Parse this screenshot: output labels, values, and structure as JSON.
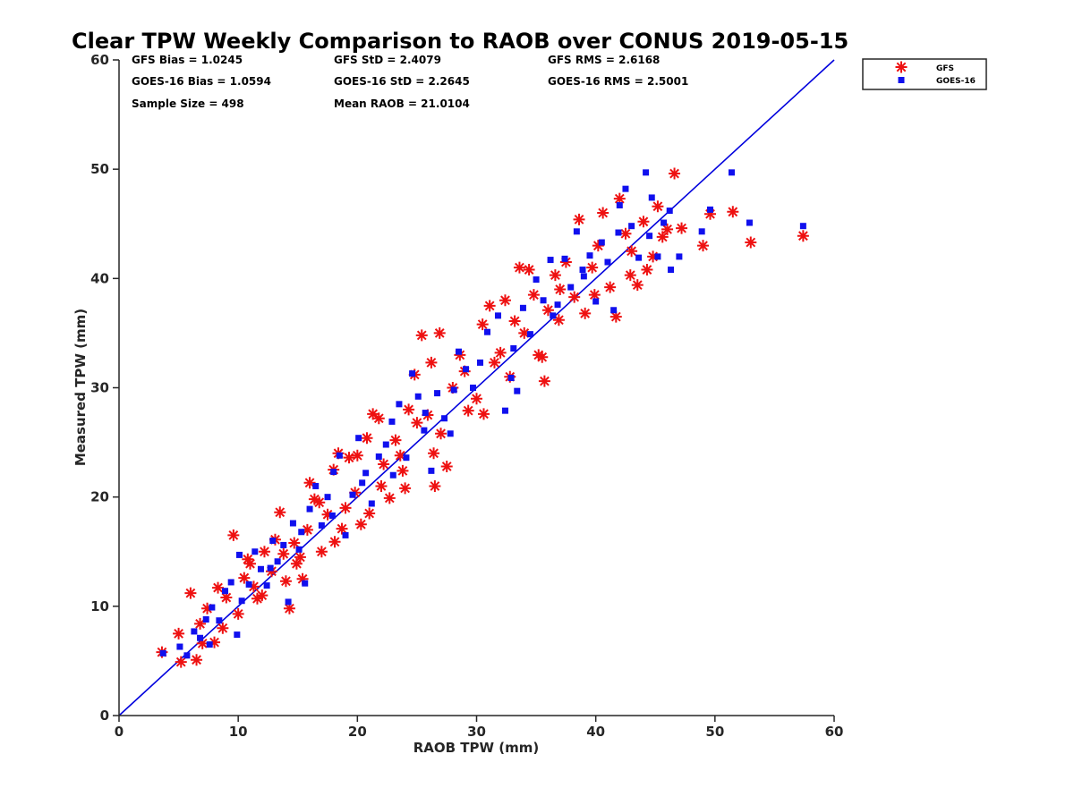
{
  "chart_data": {
    "type": "scatter",
    "title": "Clear TPW Weekly Comparison to RAOB over CONUS 2019-05-15",
    "xlabel": "RAOB TPW (mm)",
    "ylabel": "Measured TPW (mm)",
    "xlim": [
      0,
      60
    ],
    "ylim": [
      0,
      60
    ],
    "xticks": [
      0,
      10,
      20,
      30,
      40,
      50,
      60
    ],
    "yticks": [
      0,
      10,
      20,
      30,
      40,
      50,
      60
    ],
    "grid": false,
    "legend_position": "top-right outside",
    "reference_line": {
      "name": "1:1 line",
      "x": [
        0,
        60
      ],
      "y": [
        0,
        60
      ],
      "color": "#0000dd"
    },
    "stats": [
      [
        "GFS Bias = 1.0245",
        "GFS StD = 2.4079",
        "GFS RMS = 2.6168"
      ],
      [
        "GOES-16 Bias = 1.0594",
        "GOES-16 StD = 2.2645",
        "GOES-16 RMS = 2.5001"
      ],
      [
        "Sample Size = 498",
        "Mean RAOB = 21.0104"
      ]
    ],
    "series": [
      {
        "name": "GFS",
        "marker": "asterisk",
        "color": "#ee1111",
        "points": [
          [
            3.6,
            5.8
          ],
          [
            5.2,
            4.9
          ],
          [
            6.0,
            11.2
          ],
          [
            6.5,
            5.1
          ],
          [
            5.0,
            7.5
          ],
          [
            6.8,
            8.4
          ],
          [
            7.4,
            9.8
          ],
          [
            8.0,
            6.7
          ],
          [
            8.7,
            8.0
          ],
          [
            9.0,
            10.8
          ],
          [
            9.6,
            16.5
          ],
          [
            10.0,
            9.3
          ],
          [
            10.5,
            12.6
          ],
          [
            11.0,
            13.9
          ],
          [
            11.6,
            10.7
          ],
          [
            12.2,
            15.0
          ],
          [
            12.8,
            13.2
          ],
          [
            13.1,
            16.1
          ],
          [
            13.5,
            18.6
          ],
          [
            14.0,
            12.3
          ],
          [
            14.3,
            9.8
          ],
          [
            14.7,
            15.8
          ],
          [
            15.2,
            14.5
          ],
          [
            15.8,
            17.0
          ],
          [
            16.0,
            21.3
          ],
          [
            16.4,
            19.8
          ],
          [
            17.0,
            15.0
          ],
          [
            17.5,
            18.4
          ],
          [
            18.0,
            22.5
          ],
          [
            18.4,
            24.0
          ],
          [
            18.7,
            17.1
          ],
          [
            19.3,
            23.6
          ],
          [
            19.8,
            20.4
          ],
          [
            20.3,
            17.5
          ],
          [
            20.8,
            25.4
          ],
          [
            21.3,
            27.6
          ],
          [
            21.8,
            27.2
          ],
          [
            22.2,
            23.0
          ],
          [
            22.7,
            19.9
          ],
          [
            23.2,
            25.2
          ],
          [
            23.8,
            22.4
          ],
          [
            24.3,
            28.0
          ],
          [
            24.8,
            31.2
          ],
          [
            25.4,
            34.8
          ],
          [
            25.9,
            27.5
          ],
          [
            26.2,
            32.3
          ],
          [
            26.5,
            21.0
          ],
          [
            26.9,
            35.0
          ],
          [
            27.5,
            22.8
          ],
          [
            28.0,
            30.0
          ],
          [
            28.6,
            33.0
          ],
          [
            29.3,
            27.9
          ],
          [
            30.0,
            29.0
          ],
          [
            30.5,
            35.8
          ],
          [
            31.1,
            37.5
          ],
          [
            32.0,
            33.2
          ],
          [
            32.4,
            38.0
          ],
          [
            32.8,
            31.0
          ],
          [
            33.2,
            36.1
          ],
          [
            33.6,
            41.0
          ],
          [
            34.0,
            35.0
          ],
          [
            34.8,
            38.5
          ],
          [
            35.2,
            33.0
          ],
          [
            35.7,
            30.6
          ],
          [
            36.0,
            37.1
          ],
          [
            36.6,
            40.3
          ],
          [
            37.0,
            39.0
          ],
          [
            37.5,
            41.5
          ],
          [
            38.2,
            38.3
          ],
          [
            38.6,
            45.4
          ],
          [
            39.1,
            36.8
          ],
          [
            39.7,
            41.0
          ],
          [
            40.2,
            43.0
          ],
          [
            40.6,
            46.0
          ],
          [
            41.2,
            39.2
          ],
          [
            41.7,
            36.5
          ],
          [
            42.0,
            47.3
          ],
          [
            42.5,
            44.1
          ],
          [
            43.0,
            42.5
          ],
          [
            43.5,
            39.4
          ],
          [
            44.0,
            45.2
          ],
          [
            44.3,
            40.8
          ],
          [
            44.8,
            42.0
          ],
          [
            45.2,
            46.6
          ],
          [
            45.6,
            43.8
          ],
          [
            46.0,
            44.5
          ],
          [
            46.6,
            49.6
          ],
          [
            47.2,
            44.6
          ],
          [
            49.0,
            43.0
          ],
          [
            49.6,
            45.9
          ],
          [
            51.5,
            46.1
          ],
          [
            53.0,
            43.3
          ],
          [
            57.4,
            43.9
          ],
          [
            8.3,
            11.7
          ],
          [
            10.8,
            14.3
          ],
          [
            12.0,
            11.0
          ],
          [
            13.8,
            14.8
          ],
          [
            15.4,
            12.5
          ],
          [
            16.8,
            19.5
          ],
          [
            19.0,
            19.0
          ],
          [
            20.0,
            23.8
          ],
          [
            22.0,
            21.0
          ],
          [
            24.0,
            20.8
          ],
          [
            25.0,
            26.8
          ],
          [
            27.0,
            25.8
          ],
          [
            29.0,
            31.5
          ],
          [
            31.5,
            32.3
          ],
          [
            34.4,
            40.8
          ],
          [
            36.9,
            36.2
          ],
          [
            39.9,
            38.5
          ],
          [
            42.9,
            40.3
          ],
          [
            7.0,
            6.6
          ],
          [
            11.3,
            11.8
          ],
          [
            14.9,
            13.9
          ],
          [
            18.1,
            15.9
          ],
          [
            21.0,
            18.5
          ],
          [
            23.6,
            23.8
          ],
          [
            26.4,
            24.0
          ],
          [
            30.6,
            27.6
          ],
          [
            35.5,
            32.8
          ]
        ]
      },
      {
        "name": "GOES-16",
        "marker": "square",
        "color": "#1010ee",
        "points": [
          [
            3.7,
            5.7
          ],
          [
            5.1,
            6.3
          ],
          [
            5.7,
            5.5
          ],
          [
            6.3,
            7.7
          ],
          [
            6.8,
            7.1
          ],
          [
            7.3,
            8.8
          ],
          [
            7.8,
            9.9
          ],
          [
            8.4,
            8.7
          ],
          [
            8.9,
            11.4
          ],
          [
            9.4,
            12.2
          ],
          [
            9.9,
            7.4
          ],
          [
            10.3,
            10.5
          ],
          [
            10.9,
            12.0
          ],
          [
            11.4,
            15.0
          ],
          [
            11.9,
            13.4
          ],
          [
            12.4,
            11.9
          ],
          [
            12.9,
            16.0
          ],
          [
            13.3,
            14.1
          ],
          [
            13.8,
            15.6
          ],
          [
            14.2,
            10.4
          ],
          [
            14.6,
            17.6
          ],
          [
            15.1,
            15.2
          ],
          [
            15.6,
            12.1
          ],
          [
            16.0,
            18.9
          ],
          [
            16.5,
            21.0
          ],
          [
            17.0,
            17.4
          ],
          [
            17.5,
            20.0
          ],
          [
            18.0,
            22.3
          ],
          [
            18.5,
            23.8
          ],
          [
            19.0,
            16.5
          ],
          [
            19.6,
            20.2
          ],
          [
            20.1,
            25.4
          ],
          [
            20.7,
            22.2
          ],
          [
            21.2,
            19.4
          ],
          [
            21.8,
            23.7
          ],
          [
            22.4,
            24.8
          ],
          [
            22.9,
            26.9
          ],
          [
            23.5,
            28.5
          ],
          [
            24.1,
            23.6
          ],
          [
            24.6,
            31.3
          ],
          [
            25.1,
            29.2
          ],
          [
            25.6,
            26.1
          ],
          [
            26.2,
            22.4
          ],
          [
            26.7,
            29.5
          ],
          [
            27.3,
            27.2
          ],
          [
            27.8,
            25.8
          ],
          [
            28.5,
            33.3
          ],
          [
            29.1,
            31.7
          ],
          [
            29.7,
            30.0
          ],
          [
            30.3,
            32.3
          ],
          [
            30.9,
            35.1
          ],
          [
            31.8,
            36.6
          ],
          [
            32.4,
            27.9
          ],
          [
            32.9,
            30.9
          ],
          [
            33.4,
            29.7
          ],
          [
            33.9,
            37.3
          ],
          [
            34.5,
            34.9
          ],
          [
            35.0,
            39.9
          ],
          [
            35.6,
            38.0
          ],
          [
            36.2,
            41.7
          ],
          [
            36.8,
            37.6
          ],
          [
            37.4,
            41.8
          ],
          [
            37.9,
            39.2
          ],
          [
            38.4,
            44.3
          ],
          [
            39.0,
            40.2
          ],
          [
            39.5,
            42.1
          ],
          [
            40.0,
            37.9
          ],
          [
            40.5,
            43.3
          ],
          [
            41.0,
            41.5
          ],
          [
            41.5,
            37.1
          ],
          [
            42.0,
            46.7
          ],
          [
            42.5,
            48.2
          ],
          [
            43.0,
            44.8
          ],
          [
            43.6,
            41.9
          ],
          [
            44.2,
            49.7
          ],
          [
            44.7,
            47.4
          ],
          [
            45.2,
            42.0
          ],
          [
            45.7,
            45.1
          ],
          [
            46.2,
            46.2
          ],
          [
            47.0,
            42.0
          ],
          [
            48.9,
            44.3
          ],
          [
            49.6,
            46.3
          ],
          [
            51.4,
            49.7
          ],
          [
            52.9,
            45.1
          ],
          [
            57.4,
            44.8
          ],
          [
            7.6,
            6.5
          ],
          [
            10.1,
            14.7
          ],
          [
            12.7,
            13.5
          ],
          [
            15.3,
            16.8
          ],
          [
            17.9,
            18.3
          ],
          [
            20.4,
            21.3
          ],
          [
            23.0,
            22.0
          ],
          [
            25.7,
            27.7
          ],
          [
            28.1,
            29.8
          ],
          [
            33.1,
            33.6
          ],
          [
            36.4,
            36.6
          ],
          [
            38.9,
            40.8
          ],
          [
            41.9,
            44.2
          ],
          [
            44.5,
            43.9
          ],
          [
            46.3,
            40.8
          ]
        ]
      }
    ]
  }
}
